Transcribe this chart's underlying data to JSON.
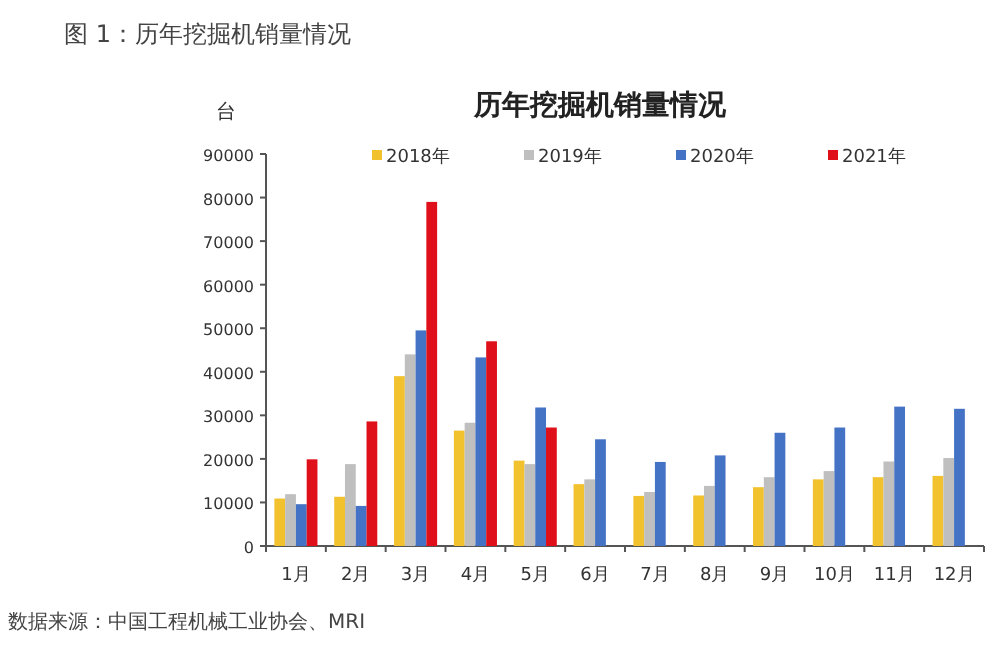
{
  "chart_data": {
    "type": "bar",
    "title": "历年挖掘机销量情况",
    "ylabel": "台",
    "annotations": [
      "图 1：历年挖掘机销量情况",
      "数据来源：中国工程机械工业协会、MRI"
    ],
    "categories": [
      "1月",
      "2月",
      "3月",
      "4月",
      "5月",
      "6月",
      "7月",
      "8月",
      "9月",
      "10月",
      "11月",
      "12月"
    ],
    "series": [
      {
        "name": "2018年",
        "color": "#f2c12e",
        "values": [
          10900,
          11300,
          39000,
          26500,
          19600,
          14200,
          11500,
          11600,
          13500,
          15300,
          15800,
          16100
        ]
      },
      {
        "name": "2019年",
        "color": "#bfbfbf",
        "values": [
          11900,
          18800,
          44000,
          28300,
          18800,
          15300,
          12400,
          13800,
          15800,
          17200,
          19400,
          20200
        ]
      },
      {
        "name": "2020年",
        "color": "#4472c4",
        "values": [
          9600,
          9200,
          49500,
          43300,
          31800,
          24500,
          19300,
          20800,
          26000,
          27200,
          32000,
          31500
        ]
      },
      {
        "name": "2021年",
        "color": "#e0101a",
        "values": [
          19900,
          28600,
          79000,
          47000,
          27200,
          null,
          null,
          null,
          null,
          null,
          null,
          null
        ]
      }
    ],
    "ylim": [
      0,
      90000
    ],
    "yticks": [
      0,
      10000,
      20000,
      30000,
      40000,
      50000,
      60000,
      70000,
      80000,
      90000
    ],
    "legend": "top",
    "grid": false
  }
}
